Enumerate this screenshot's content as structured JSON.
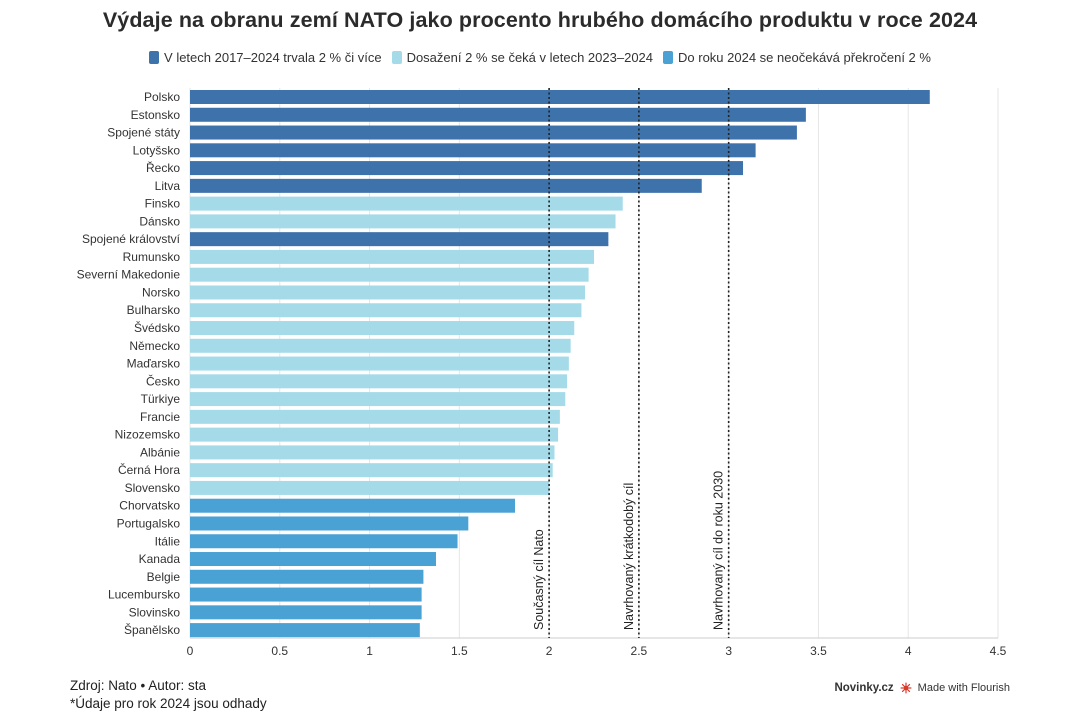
{
  "title": "Výdaje na obranu zemí NATO jako procento hrubého domácího produktu v roce 2024",
  "legend": [
    {
      "label": "V letech 2017–2024 trvala 2 % či více",
      "color": "#3d72ab"
    },
    {
      "label": "Dosažení 2 % se čeká v letech 2023–2024",
      "color": "#a5dbe9"
    },
    {
      "label": "Do roku 2024 se neočekává překročení 2 %",
      "color": "#4aa2d4"
    }
  ],
  "footer": {
    "source": "Zdroj: Nato • Autor: sta",
    "note": "*Údaje pro rok 2024 jsou odhady",
    "site": "Novinky.cz",
    "made_with": "Made with Flourish"
  },
  "chart_data": {
    "type": "bar",
    "orientation": "horizontal",
    "xlim": [
      0,
      4.5
    ],
    "xticks": [
      0,
      0.5,
      1,
      1.5,
      2,
      2.5,
      3,
      3.5,
      4,
      4.5
    ],
    "xtick_labels": [
      "0",
      "0.5",
      "1",
      "1.5",
      "2",
      "2.5",
      "3",
      "3.5",
      "4",
      "4.5"
    ],
    "grid": true,
    "legend_position": "top",
    "bars": [
      {
        "country": "Polsko",
        "value": 4.12,
        "group": 0
      },
      {
        "country": "Estonsko",
        "value": 3.43,
        "group": 0
      },
      {
        "country": "Spojené státy",
        "value": 3.38,
        "group": 0
      },
      {
        "country": "Lotyšsko",
        "value": 3.15,
        "group": 0
      },
      {
        "country": "Řecko",
        "value": 3.08,
        "group": 0
      },
      {
        "country": "Litva",
        "value": 2.85,
        "group": 0
      },
      {
        "country": "Finsko",
        "value": 2.41,
        "group": 1
      },
      {
        "country": "Dánsko",
        "value": 2.37,
        "group": 1
      },
      {
        "country": "Spojené království",
        "value": 2.33,
        "group": 0
      },
      {
        "country": "Rumunsko",
        "value": 2.25,
        "group": 1
      },
      {
        "country": "Severní Makedonie",
        "value": 2.22,
        "group": 1
      },
      {
        "country": "Norsko",
        "value": 2.2,
        "group": 1
      },
      {
        "country": "Bulharsko",
        "value": 2.18,
        "group": 1
      },
      {
        "country": "Švédsko",
        "value": 2.14,
        "group": 1
      },
      {
        "country": "Německo",
        "value": 2.12,
        "group": 1
      },
      {
        "country": "Maďarsko",
        "value": 2.11,
        "group": 1
      },
      {
        "country": "Česko",
        "value": 2.1,
        "group": 1
      },
      {
        "country": "Türkiye",
        "value": 2.09,
        "group": 1
      },
      {
        "country": "Francie",
        "value": 2.06,
        "group": 1
      },
      {
        "country": "Nizozemsko",
        "value": 2.05,
        "group": 1
      },
      {
        "country": "Albánie",
        "value": 2.03,
        "group": 1
      },
      {
        "country": "Černá Hora",
        "value": 2.02,
        "group": 1
      },
      {
        "country": "Slovensko",
        "value": 2.0,
        "group": 1
      },
      {
        "country": "Chorvatsko",
        "value": 1.81,
        "group": 2
      },
      {
        "country": "Portugalsko",
        "value": 1.55,
        "group": 2
      },
      {
        "country": "Itálie",
        "value": 1.49,
        "group": 2
      },
      {
        "country": "Kanada",
        "value": 1.37,
        "group": 2
      },
      {
        "country": "Belgie",
        "value": 1.3,
        "group": 2
      },
      {
        "country": "Lucembursko",
        "value": 1.29,
        "group": 2
      },
      {
        "country": "Slovinsko",
        "value": 1.29,
        "group": 2
      },
      {
        "country": "Španělsko",
        "value": 1.28,
        "group": 2
      }
    ],
    "reference_lines": [
      {
        "value": 2,
        "label": "Současný cíl Nato"
      },
      {
        "value": 2.5,
        "label": "Navrhovaný krátkodobý cíl"
      },
      {
        "value": 3,
        "label": "Navrhovaný cíl do roku 2030"
      }
    ]
  }
}
